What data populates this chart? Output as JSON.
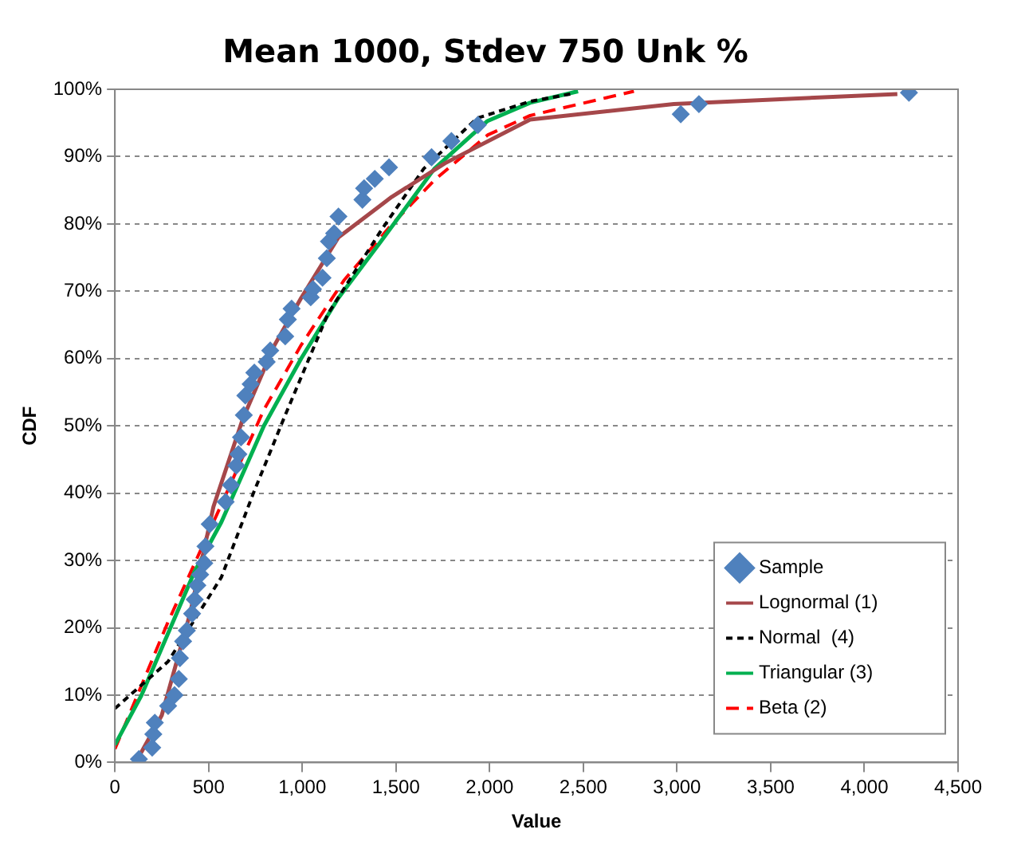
{
  "chart_data": {
    "type": "scatter",
    "title": "Mean 1000, Stdev 750 Unk %",
    "xlabel": "Value",
    "ylabel": "CDF",
    "xlim": [
      0,
      4500
    ],
    "xticks": [
      0,
      500,
      {
        "value": 1000,
        "label": "1,000"
      },
      {
        "value": 1500,
        "label": "1,500"
      },
      {
        "value": 2000,
        "label": "2,000"
      },
      {
        "value": 2500,
        "label": "2,500"
      },
      {
        "value": 3000,
        "label": "3,000"
      },
      {
        "value": 3500,
        "label": "3,500"
      },
      {
        "value": 4000,
        "label": "4,000"
      },
      {
        "value": 4500,
        "label": "4,500"
      }
    ],
    "ylim": [
      0,
      100
    ],
    "yticks": [
      {
        "value": 0,
        "label": "0%"
      },
      {
        "value": 10,
        "label": "10%"
      },
      {
        "value": 20,
        "label": "20%"
      },
      {
        "value": 30,
        "label": "30%"
      },
      {
        "value": 40,
        "label": "40%"
      },
      {
        "value": 50,
        "label": "50%"
      },
      {
        "value": 60,
        "label": "60%"
      },
      {
        "value": 70,
        "label": "70%"
      },
      {
        "value": 80,
        "label": "80%"
      },
      {
        "value": 90,
        "label": "90%"
      },
      {
        "value": 100,
        "label": "100%"
      }
    ],
    "grid": "y",
    "legend": "bottom right",
    "series": [
      {
        "name": "Sample",
        "type": "scatter",
        "marker": "diamond",
        "color": "#4f81bd",
        "x": [
          128,
          199,
          205,
          213,
          284,
          318,
          341,
          347,
          364,
          384,
          412,
          426,
          440,
          455,
          477,
          483,
          506,
          591,
          619,
          648,
          659,
          673,
          688,
          696,
          724,
          744,
          810,
          829,
          909,
          923,
          943,
          1045,
          1057,
          1108,
          1131,
          1142,
          1170,
          1193,
          1321,
          1330,
          1387,
          1463,
          1690,
          1796,
          1937,
          3020,
          3117,
          4238
        ],
        "values": [
          0.5,
          2.2,
          4.2,
          5.9,
          8.4,
          10,
          12.4,
          15.5,
          18,
          19.6,
          22.1,
          24.2,
          26.3,
          27.9,
          29.6,
          32.1,
          35.4,
          38.7,
          41.2,
          44.1,
          45.8,
          48.3,
          51.6,
          54.5,
          56.2,
          57.9,
          59.5,
          61.2,
          63.3,
          65.8,
          67.4,
          69.1,
          70.3,
          72,
          74.9,
          77.4,
          78.6,
          81.1,
          83.6,
          85.3,
          86.7,
          88.4,
          89.9,
          92.3,
          94.7,
          96.3,
          97.8,
          99.5
        ]
      },
      {
        "name": "Lognormal (1)",
        "type": "line",
        "line_style": "solid",
        "color": "#a5474a",
        "x": [
          111,
          250,
          400,
          526,
          682,
          852,
          994,
          1193,
          1477,
          1761,
          2216,
          2983,
          4176
        ],
        "values": [
          0,
          7,
          22,
          38,
          51,
          62,
          69,
          78,
          84,
          89,
          95.5,
          97.8,
          99.3
        ]
      },
      {
        "name": "Normal  (4)",
        "type": "line",
        "line_style": "dotted",
        "color": "#000000",
        "x": [
          0,
          284,
          568,
          739,
          909,
          1136,
          1420,
          1648,
          1932,
          2216,
          2450
        ],
        "values": [
          8,
          15,
          27.5,
          40,
          51.6,
          66.6,
          79,
          88.2,
          95.7,
          98.2,
          99.4
        ]
      },
      {
        "name": "Triangular (3)",
        "type": "line",
        "line_style": "solid",
        "color": "#00b050",
        "x": [
          0,
          142,
          426,
          568,
          795,
          994,
          1193,
          1420,
          1705,
          1989,
          2216,
          2472
        ],
        "values": [
          2.6,
          10,
          28.4,
          35.7,
          50,
          60,
          69,
          77.4,
          88.2,
          95.3,
          98,
          99.7
        ]
      },
      {
        "name": "Beta (2)",
        "type": "line",
        "line_style": "dashed",
        "color": "#ff0000",
        "x": [
          0,
          284,
          568,
          795,
          994,
          1222,
          1477,
          1705,
          1989,
          2216,
          2770
        ],
        "values": [
          2,
          20.9,
          38.3,
          52.4,
          62,
          71.6,
          79.9,
          86.5,
          93.2,
          96.1,
          99.7
        ]
      }
    ]
  }
}
